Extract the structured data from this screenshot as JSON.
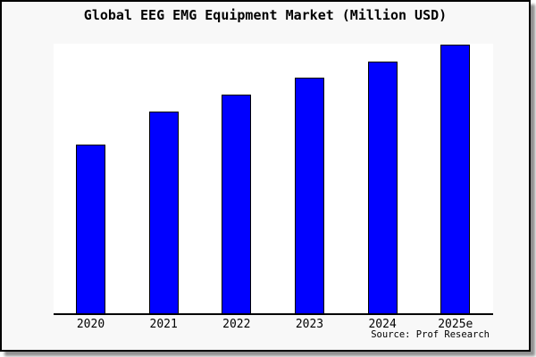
{
  "window": {
    "background_color": "#f8f8f8",
    "border_color": "#000000",
    "shadow_color": "#8f8f8f"
  },
  "chart_data": {
    "type": "bar",
    "title": "Global EEG EMG Equipment Market (Million USD)",
    "categories": [
      "2020",
      "2021",
      "2022",
      "2023",
      "2024",
      "2025e"
    ],
    "values_pct_of_max": [
      62.9,
      75.2,
      81.5,
      87.8,
      93.8,
      100
    ],
    "value_note": "y-axis has no ticks, labels or gridlines; values estimated as percent of tallest bar (2025e)",
    "xlabel": "",
    "ylabel": "",
    "grid": false,
    "legend": "none",
    "bar_color": "#0000ff",
    "bar_border_color": "#000000",
    "plot_background": "#ffffff",
    "source_note": "Source: Prof Research"
  }
}
